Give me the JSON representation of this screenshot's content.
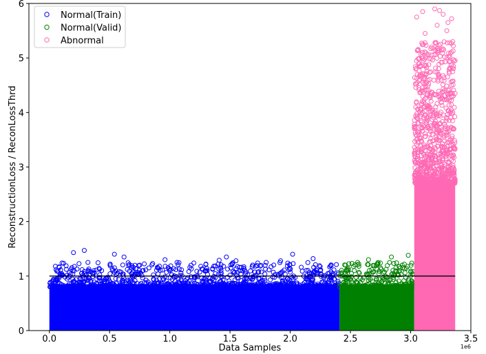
{
  "chart_data": {
    "type": "scatter",
    "title": "",
    "xlabel": "Data Samples",
    "ylabel": "ReconstructionLoss / ReconLossThrd",
    "x_offset_label": "1e6",
    "xlim": [
      -0.17,
      3.5
    ],
    "ylim": [
      0,
      6
    ],
    "x_ticks": [
      0.0,
      0.5,
      1.0,
      1.5,
      2.0,
      2.5,
      3.0,
      3.5
    ],
    "x_tick_labels": [
      "0.0",
      "0.5",
      "1.0",
      "1.5",
      "2.0",
      "2.5",
      "3.0",
      "3.5"
    ],
    "y_ticks": [
      0,
      1,
      2,
      3,
      4,
      5,
      6
    ],
    "y_tick_labels": [
      "0",
      "1",
      "2",
      "3",
      "4",
      "5",
      "6"
    ],
    "threshold": {
      "x_start": 0.0,
      "x_end": 3.37,
      "y": 1.0,
      "color": "#000000"
    },
    "legend_position": "top-left",
    "grid": false,
    "series": [
      {
        "name": "Normal(Train)",
        "color": "#0000ff",
        "x_range": [
          0.0,
          2.41
        ],
        "dense_band": [
          0.0,
          0.85
        ],
        "outliers": [
          [
            0.05,
            1.18
          ],
          [
            0.1,
            1.02
          ],
          [
            0.2,
            1.43
          ],
          [
            0.29,
            1.47
          ],
          [
            0.32,
            1.25
          ],
          [
            0.37,
            1.1
          ],
          [
            0.54,
            1.4
          ],
          [
            0.62,
            1.35
          ],
          [
            0.75,
            1.2
          ],
          [
            0.9,
            1.15
          ],
          [
            0.96,
            1.3
          ],
          [
            1.06,
            1.25
          ],
          [
            1.3,
            1.22
          ],
          [
            1.41,
            1.29
          ],
          [
            1.47,
            1.35
          ],
          [
            1.55,
            1.28
          ],
          [
            1.69,
            1.2
          ],
          [
            1.8,
            1.25
          ],
          [
            1.92,
            1.28
          ],
          [
            2.02,
            1.4
          ],
          [
            2.19,
            1.32
          ],
          [
            2.34,
            1.2
          ]
        ]
      },
      {
        "name": "Normal(Valid)",
        "color": "#008000",
        "x_range": [
          2.41,
          3.03
        ],
        "dense_band": [
          0.0,
          0.85
        ],
        "outliers": [
          [
            2.46,
            1.2
          ],
          [
            2.56,
            1.25
          ],
          [
            2.65,
            1.3
          ],
          [
            2.72,
            1.22
          ],
          [
            2.84,
            1.35
          ],
          [
            2.93,
            1.2
          ],
          [
            2.98,
            1.38
          ]
        ]
      },
      {
        "name": "Abnormal",
        "color": "#ff69b4",
        "x_range": [
          3.03,
          3.37
        ],
        "dense_band": [
          0.0,
          2.7
        ],
        "outliers": [
          [
            3.05,
            5.75
          ],
          [
            3.1,
            5.85
          ],
          [
            3.2,
            5.9
          ],
          [
            3.24,
            5.87
          ],
          [
            3.27,
            5.8
          ],
          [
            3.31,
            5.65
          ],
          [
            3.34,
            5.72
          ],
          [
            3.12,
            5.45
          ],
          [
            3.22,
            5.6
          ],
          [
            3.3,
            5.5
          ],
          [
            3.35,
            5.3
          ]
        ]
      }
    ]
  }
}
